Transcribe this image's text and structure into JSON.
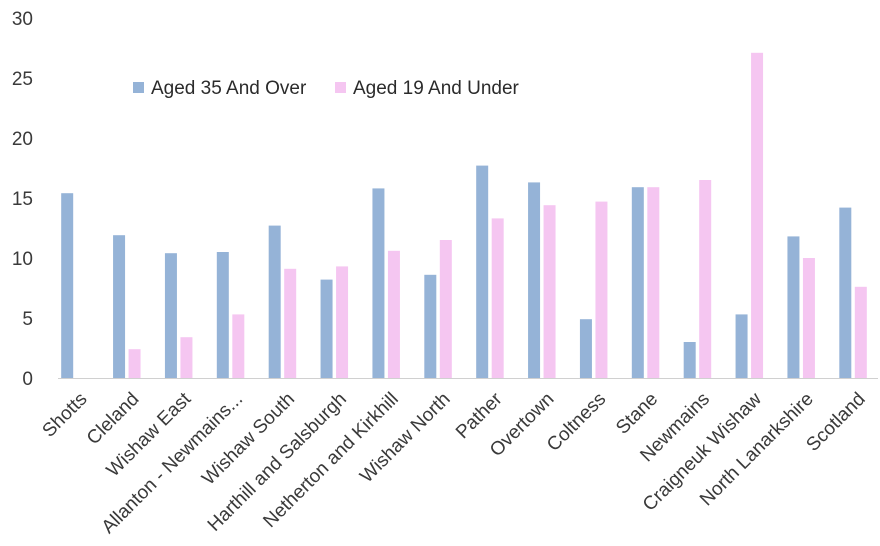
{
  "chart_data": {
    "type": "bar",
    "title": "",
    "xlabel": "",
    "ylabel": "",
    "ylim": [
      0,
      30
    ],
    "yticks": [
      "0",
      "5",
      "10",
      "15",
      "20",
      "25",
      "30"
    ],
    "grid": false,
    "legend_position": "top-left",
    "categories": [
      "Shotts",
      "Cleland",
      "Wishaw East",
      "Allanton - Newmains...",
      "Wishaw South",
      "Harthill and Salsburgh",
      "Netherton and Kirkhill",
      "Wishaw North",
      "Pather",
      "Overtown",
      "Coltness",
      "Stane",
      "Newmains",
      "Craigneuk Wishaw",
      "North Lanarkshire",
      "Scotland"
    ],
    "series": [
      {
        "name": "Aged 35 And Over",
        "color": "#95B3D7",
        "values": [
          15.4,
          11.9,
          10.4,
          10.5,
          12.7,
          8.2,
          15.8,
          8.6,
          17.7,
          16.3,
          4.9,
          15.9,
          3.0,
          5.3,
          11.8,
          14.2
        ]
      },
      {
        "name": "Aged 19 And Under",
        "color": "#F5C6F1",
        "values": [
          0,
          2.4,
          3.4,
          5.3,
          9.1,
          9.3,
          10.6,
          11.5,
          13.3,
          14.4,
          14.7,
          15.9,
          16.5,
          27.1,
          10.0,
          7.6
        ]
      }
    ]
  }
}
